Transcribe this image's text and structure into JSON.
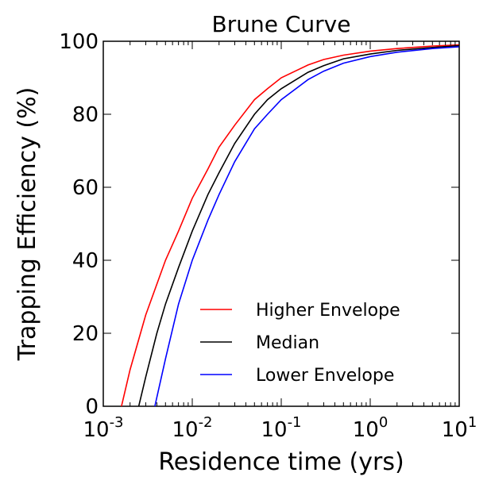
{
  "chart_data": {
    "type": "line",
    "title": "Brune Curve",
    "xlabel": "Residence time (yrs)",
    "ylabel": "Trapping Efficiency (%)",
    "xscale": "log",
    "xlim": [
      0.001,
      10
    ],
    "ylim": [
      0,
      100
    ],
    "xticks": [
      {
        "value": 0.001,
        "base": "10",
        "exp": "-3"
      },
      {
        "value": 0.01,
        "base": "10",
        "exp": "-2"
      },
      {
        "value": 0.1,
        "base": "10",
        "exp": "-1"
      },
      {
        "value": 1,
        "base": "10",
        "exp": "0"
      },
      {
        "value": 10,
        "base": "10",
        "exp": "1"
      }
    ],
    "yticks": [
      {
        "value": 0,
        "label": "0"
      },
      {
        "value": 20,
        "label": "20"
      },
      {
        "value": 40,
        "label": "40"
      },
      {
        "value": 60,
        "label": "60"
      },
      {
        "value": 80,
        "label": "80"
      },
      {
        "value": 100,
        "label": "100"
      }
    ],
    "grid": false,
    "legend_position": "lower-right",
    "series": [
      {
        "name": "Higher Envelope",
        "color": "#ff0000",
        "x": [
          0.0016,
          0.002,
          0.003,
          0.005,
          0.007,
          0.01,
          0.015,
          0.02,
          0.03,
          0.05,
          0.07,
          0.1,
          0.2,
          0.3,
          0.5,
          1,
          2,
          5,
          10
        ],
        "y": [
          0,
          10,
          25,
          40,
          48,
          57,
          65,
          71,
          77,
          84,
          87,
          90,
          93.5,
          95,
          96.2,
          97.3,
          98,
          98.7,
          99
        ]
      },
      {
        "name": "Median",
        "color": "#000000",
        "x": [
          0.0025,
          0.003,
          0.004,
          0.005,
          0.007,
          0.01,
          0.015,
          0.02,
          0.03,
          0.05,
          0.07,
          0.1,
          0.2,
          0.3,
          0.5,
          1,
          2,
          5,
          10
        ],
        "y": [
          0,
          8,
          20,
          28,
          38,
          48,
          58,
          64,
          72,
          80,
          84,
          87,
          91.5,
          93.3,
          95.2,
          96.5,
          97.5,
          98.3,
          98.8
        ]
      },
      {
        "name": "Lower Envelope",
        "color": "#0000ff",
        "x": [
          0.0038,
          0.005,
          0.007,
          0.01,
          0.015,
          0.02,
          0.03,
          0.05,
          0.07,
          0.1,
          0.2,
          0.3,
          0.5,
          1,
          2,
          5,
          10
        ],
        "y": [
          0,
          13,
          28,
          40,
          51,
          58,
          67,
          76,
          80,
          84,
          89.5,
          91.8,
          94,
          95.8,
          97,
          98,
          98.5
        ]
      }
    ]
  }
}
